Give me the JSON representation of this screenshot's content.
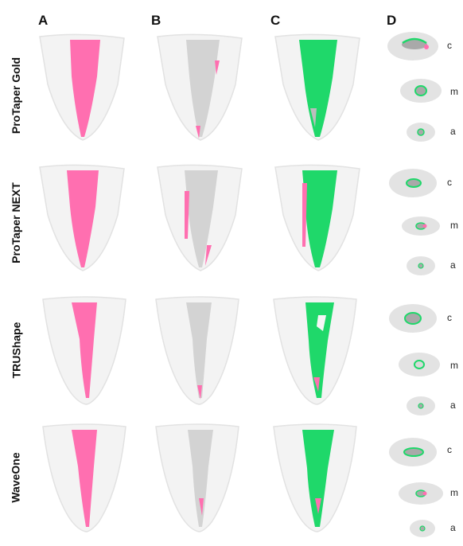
{
  "figure": {
    "column_headers": [
      "A",
      "B",
      "C",
      "D"
    ],
    "row_labels": [
      "ProTaper Gold",
      "ProTaper NEXT",
      "TRUShape",
      "WaveOne"
    ],
    "level_labels": [
      "c",
      "m",
      "a"
    ],
    "colors": {
      "pink": "#ff6fb0",
      "green": "#1fd86a",
      "grey": "#cfcfcf",
      "tooth_outline": "#e6e6e6"
    }
  }
}
